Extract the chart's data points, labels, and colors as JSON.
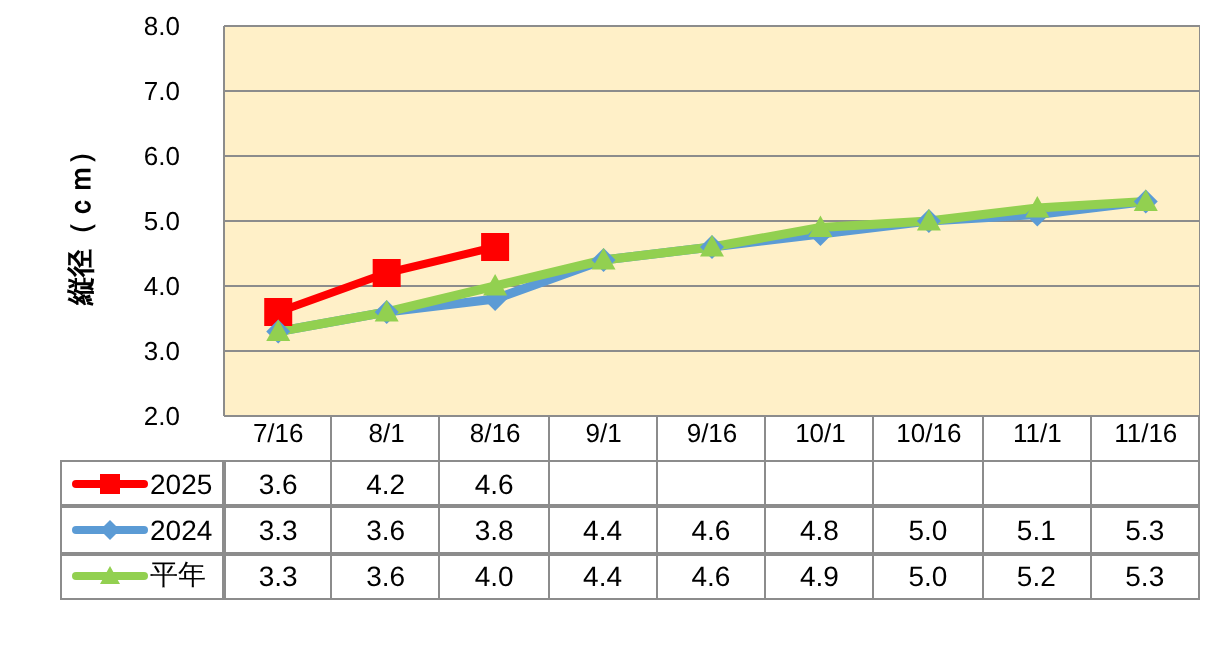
{
  "chart_data": {
    "type": "line",
    "ylabel": "縦径（ｃｍ）",
    "categories": [
      "7/16",
      "8/1",
      "8/16",
      "9/1",
      "9/16",
      "10/1",
      "10/16",
      "11/1",
      "11/16"
    ],
    "series": [
      {
        "name": "2025",
        "color": "#ff0000",
        "marker": "square",
        "values": [
          3.6,
          4.2,
          4.6,
          null,
          null,
          null,
          null,
          null,
          null
        ],
        "value_labels": [
          "3.6",
          "4.2",
          "4.6",
          null,
          null,
          null,
          null,
          null,
          null
        ]
      },
      {
        "name": "2024",
        "color": "#5b9bd5",
        "marker": "diamond",
        "values": [
          3.3,
          3.6,
          3.8,
          4.4,
          4.6,
          4.8,
          5.0,
          5.1,
          5.3
        ],
        "value_labels": [
          "3.3",
          "3.6",
          "3.8",
          "4.4",
          "4.6",
          "4.8",
          "5.0",
          "5.1",
          "5.3"
        ]
      },
      {
        "name": "平年",
        "color": "#92d050",
        "marker": "triangle",
        "values": [
          3.3,
          3.6,
          4.0,
          4.4,
          4.6,
          4.9,
          5.0,
          5.2,
          5.3
        ],
        "value_labels": [
          "3.3",
          "3.6",
          "4.0",
          "4.4",
          "4.6",
          "4.9",
          "5.0",
          "5.2",
          "5.3"
        ]
      }
    ],
    "ylim": [
      2,
      8
    ],
    "yticks": [
      {
        "value": 2,
        "label": "2.0"
      },
      {
        "value": 3,
        "label": "3.0"
      },
      {
        "value": 4,
        "label": "4.0"
      },
      {
        "value": 5,
        "label": "5.0"
      },
      {
        "value": 6,
        "label": "6.0"
      },
      {
        "value": 7,
        "label": "7.0"
      },
      {
        "value": 8,
        "label": "8.0"
      }
    ],
    "grid": "y",
    "legend": "bottom",
    "line_style": "solid"
  }
}
